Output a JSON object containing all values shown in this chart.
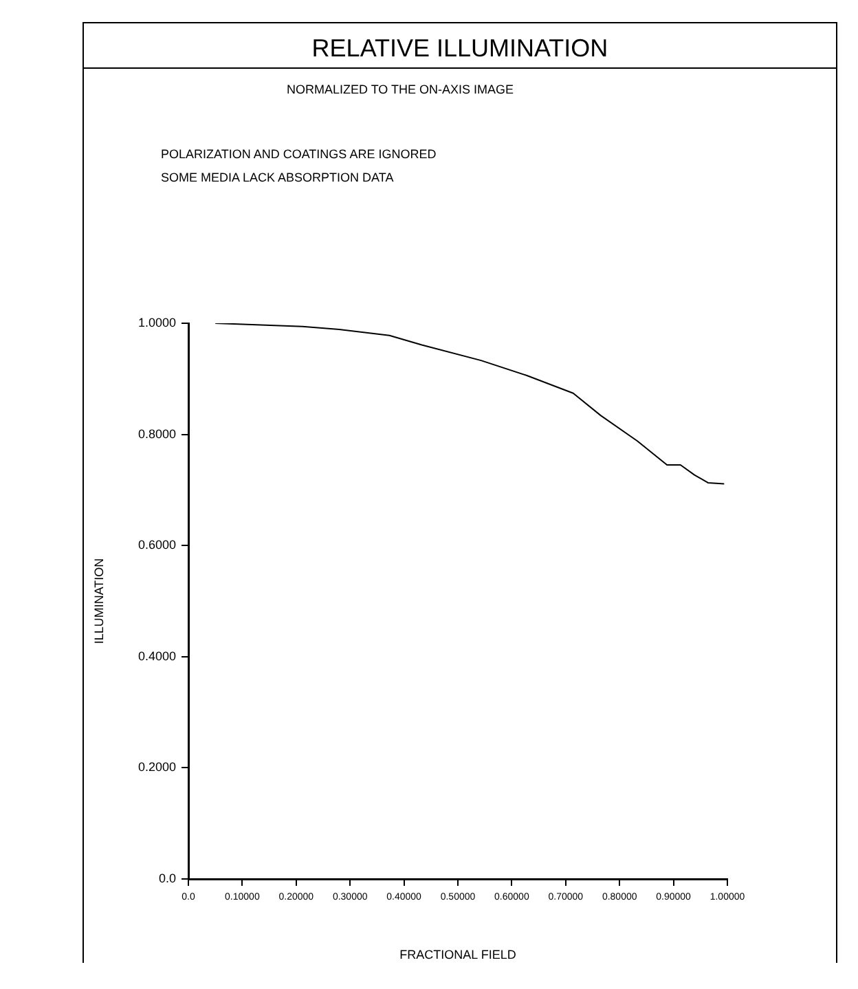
{
  "chart_data": {
    "type": "line",
    "title": "RELATIVE ILLUMINATION",
    "subtitle": "NORMALIZED TO THE ON-AXIS IMAGE",
    "annotations": [
      "POLARIZATION AND COATINGS ARE IGNORED",
      "SOME MEDIA LACK ABSORPTION DATA"
    ],
    "xlabel": "FRACTIONAL FIELD",
    "ylabel": "ILLUMINATION",
    "series": [
      {
        "color": "#000000",
        "x": [
          0.05,
          0.118,
          0.212,
          0.28,
          0.373,
          0.433,
          0.543,
          0.628,
          0.714,
          0.765,
          0.833,
          0.888,
          0.913,
          0.939,
          0.964,
          0.994
        ],
        "values": [
          1.0,
          0.9975,
          0.994,
          0.989,
          0.978,
          0.961,
          0.933,
          0.906,
          0.874,
          0.834,
          0.788,
          0.745,
          0.745,
          0.727,
          0.713,
          0.711
        ]
      }
    ],
    "xlim": [
      0,
      1
    ],
    "xticks": [
      {
        "value": 0,
        "label": "0.0"
      },
      {
        "value": 0.1,
        "label": "0.10000"
      },
      {
        "value": 0.2,
        "label": "0.20000"
      },
      {
        "value": 0.3,
        "label": "0.30000"
      },
      {
        "value": 0.4,
        "label": "0.40000"
      },
      {
        "value": 0.5,
        "label": "0.50000"
      },
      {
        "value": 0.6,
        "label": "0.60000"
      },
      {
        "value": 0.7,
        "label": "0.70000"
      },
      {
        "value": 0.8,
        "label": "0.80000"
      },
      {
        "value": 0.9,
        "label": "0.90000"
      },
      {
        "value": 1,
        "label": "1.00000"
      }
    ],
    "ylim": [
      0,
      1
    ],
    "yticks": [
      {
        "value": 0,
        "label": "0.0"
      },
      {
        "value": 0.2,
        "label": "0.2000"
      },
      {
        "value": 0.4,
        "label": "0.4000"
      },
      {
        "value": 0.6,
        "label": "0.6000"
      },
      {
        "value": 0.8,
        "label": "0.8000"
      },
      {
        "value": 1,
        "label": "1.0000"
      }
    ],
    "grid": false,
    "legend": false,
    "marker": "none",
    "line_style": "solid"
  }
}
